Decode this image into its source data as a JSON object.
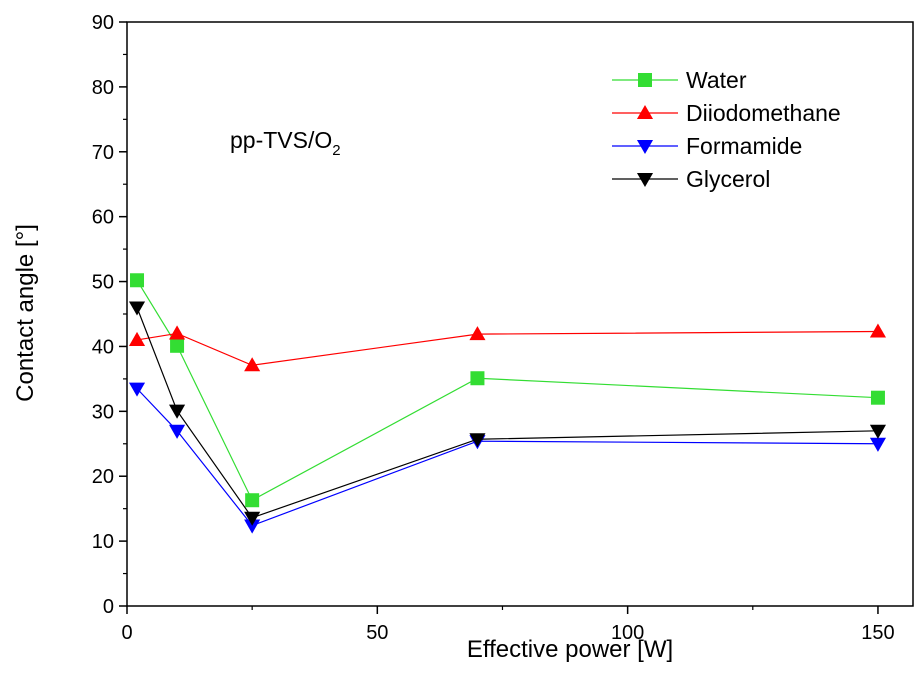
{
  "chart_data": {
    "type": "line",
    "title": "",
    "xlabel": "Effective power [W]",
    "ylabel": "Contact angle [°]",
    "xlim": [
      0,
      157
    ],
    "ylim": [
      0,
      90
    ],
    "x_ticks": [
      0,
      50,
      100,
      150
    ],
    "x_tick_labels": [
      "0",
      "50",
      "100",
      "150"
    ],
    "y_ticks": [
      0,
      10,
      20,
      30,
      40,
      50,
      60,
      70,
      80,
      90
    ],
    "y_tick_labels": [
      "0",
      "10",
      "20",
      "30",
      "40",
      "50",
      "60",
      "70",
      "80",
      "90"
    ],
    "annotation": {
      "text": "pp-TVS/O",
      "subscript": "2"
    },
    "legend_position": "top-right",
    "grid": false,
    "x": [
      2,
      10,
      25,
      70,
      150
    ],
    "series": [
      {
        "name": "Water",
        "values": [
          50.2,
          40.1,
          16.3,
          35.1,
          32.1
        ],
        "color": "#33dd33",
        "marker": "square"
      },
      {
        "name": "Diiodomethane",
        "values": [
          41.0,
          42.0,
          37.1,
          41.9,
          42.3
        ],
        "color": "#ff0000",
        "marker": "triangle-up"
      },
      {
        "name": "Formamide",
        "values": [
          33.5,
          27.0,
          12.4,
          25.4,
          25.0
        ],
        "color": "#0000ff",
        "marker": "triangle-down"
      },
      {
        "name": "Glycerol",
        "values": [
          46.0,
          30.1,
          13.6,
          25.7,
          27.0
        ],
        "color": "#000000",
        "marker": "triangle-down"
      }
    ]
  }
}
